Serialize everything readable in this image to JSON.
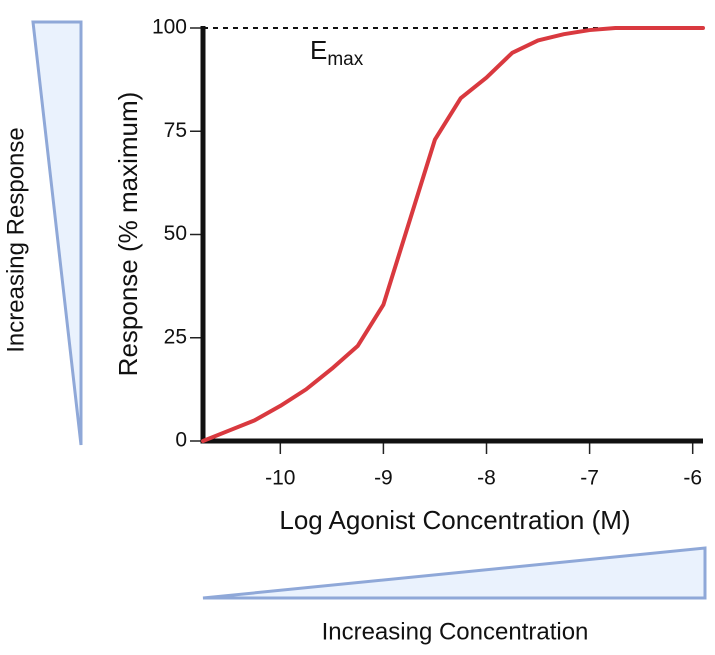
{
  "chart_data": {
    "type": "line",
    "x_label": "Log Agonist Concentration (M)",
    "y_label": "Response (% maximum)",
    "annotation": {
      "text": "E",
      "subscript": "max"
    },
    "reference_line": 100,
    "side_labels": {
      "left": "Increasing Response",
      "bottom": "Increasing Concentration"
    },
    "x": [
      -10.75,
      -10.5,
      -10.25,
      -10,
      -9.75,
      -9.5,
      -9.25,
      -9,
      -8.75,
      -8.5,
      -8.25,
      -8,
      -7.75,
      -7.5,
      -7.25,
      -7,
      -6.75,
      -6.5,
      -6.25,
      -6,
      -5.9
    ],
    "series": [
      {
        "color": "#d9393f",
        "values": [
          0,
          2.5,
          5,
          8.5,
          12.5,
          17.5,
          23,
          33,
          53,
          73,
          83,
          88,
          94,
          97,
          98.5,
          99.5,
          100,
          100,
          100,
          100,
          100
        ]
      }
    ],
    "xlim": [
      -10.75,
      -5.9
    ],
    "ylim": [
      0,
      100
    ],
    "xticks": [
      -10,
      -9,
      -8,
      -7,
      -6
    ],
    "yticks": [
      0,
      25,
      50,
      75,
      100
    ]
  }
}
